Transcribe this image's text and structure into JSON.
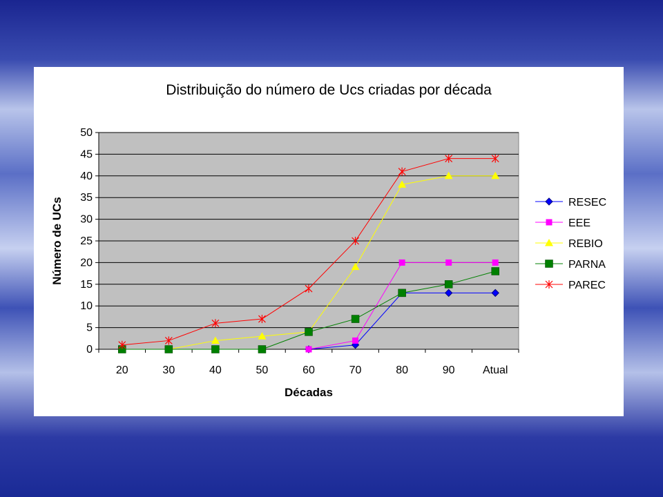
{
  "colors": {
    "plot_area": "#c0c0c0",
    "background_dark": "#1e2a8c",
    "background_light": "#c8d2ee"
  },
  "chart_data": {
    "type": "line",
    "title": "Distribuição do número de Ucs criadas por década",
    "xlabel": "Décadas",
    "ylabel": "Número de UCs",
    "categories": [
      "20",
      "30",
      "40",
      "50",
      "60",
      "70",
      "80",
      "90",
      "Atual"
    ],
    "ylim": [
      0,
      50
    ],
    "yticks": [
      0,
      5,
      10,
      15,
      20,
      25,
      30,
      35,
      40,
      45,
      50
    ],
    "grid": true,
    "legend_position": "right",
    "series": [
      {
        "name": "RESEC",
        "color": "#0000ff",
        "marker": "diamond",
        "values": [
          null,
          null,
          null,
          null,
          0,
          1,
          13,
          13,
          13
        ]
      },
      {
        "name": "EEE",
        "color": "#ff00ff",
        "marker": "square",
        "values": [
          null,
          null,
          null,
          null,
          0,
          2,
          20,
          20,
          20
        ]
      },
      {
        "name": "REBIO",
        "color": "#ffff00",
        "marker": "triangle",
        "values": [
          0,
          0,
          2,
          3,
          4,
          19,
          38,
          40,
          40
        ]
      },
      {
        "name": "PARNA",
        "color": "#008000",
        "marker": "square-large",
        "values": [
          0,
          0,
          0,
          0,
          4,
          7,
          13,
          15,
          18
        ]
      },
      {
        "name": "PAREC",
        "color": "#ff0000",
        "marker": "star",
        "values": [
          1,
          2,
          6,
          7,
          14,
          25,
          41,
          44,
          44
        ]
      }
    ]
  }
}
